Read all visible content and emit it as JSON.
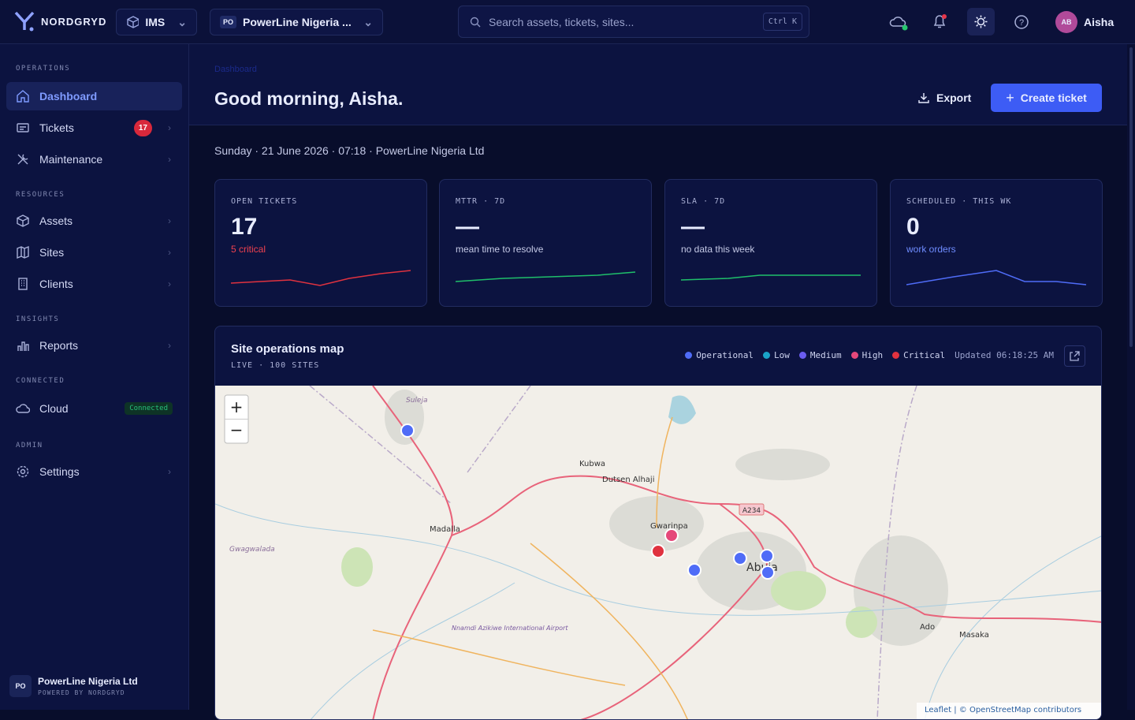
{
  "topbar": {
    "brand": "NORDGRYD",
    "module": "IMS",
    "org_badge": "PO",
    "org": "PowerLine Nigeria ...",
    "search_placeholder": "Search assets, tickets, sites...",
    "shortcut": "Ctrl K",
    "avatar": "AB",
    "user": "Aisha"
  },
  "sidebar": {
    "sections": [
      {
        "title": "OPERATIONS",
        "items": [
          {
            "label": "Dashboard"
          },
          {
            "label": "Tickets",
            "badge": "17"
          },
          {
            "label": "Maintenance"
          }
        ]
      },
      {
        "title": "RESOURCES",
        "items": [
          {
            "label": "Assets"
          },
          {
            "label": "Sites"
          },
          {
            "label": "Clients"
          }
        ]
      },
      {
        "title": "INSIGHTS",
        "items": [
          {
            "label": "Reports"
          }
        ]
      },
      {
        "title": "CONNECTED",
        "items": [
          {
            "label": "Cloud",
            "status": "Connected"
          }
        ]
      },
      {
        "title": "ADMIN",
        "items": [
          {
            "label": "Settings"
          }
        ]
      }
    ],
    "footer": {
      "badge": "PO",
      "org": "PowerLine Nigeria Ltd",
      "powered": "POWERED BY NORDGRYD"
    }
  },
  "header": {
    "breadcrumb": "Dashboard",
    "greeting": "Good morning, Aisha.",
    "export": "Export",
    "create": "Create ticket",
    "date_line": "Sunday · 21 June 2026 · 07:18 · PowerLine Nigeria Ltd"
  },
  "kpis": [
    {
      "label": "OPEN TICKETS",
      "value": "17",
      "sub": "5 critical"
    },
    {
      "label": "MTTR · 7D",
      "value": "—",
      "sub": "mean time to resolve"
    },
    {
      "label": "SLA · 7D",
      "value": "—",
      "sub": "no data this week"
    },
    {
      "label": "SCHEDULED · THIS WK",
      "value": "0",
      "sub": "work orders"
    }
  ],
  "map": {
    "title": "Site operations map",
    "subtitle": "LIVE · 100 SITES",
    "legend": [
      {
        "name": "Operational",
        "color": "#4f6cf7"
      },
      {
        "name": "Low",
        "color": "#1aa3c8"
      },
      {
        "name": "Medium",
        "color": "#6a5cf0"
      },
      {
        "name": "High",
        "color": "#e5487a"
      },
      {
        "name": "Critical",
        "color": "#e0323f"
      }
    ],
    "updated": "Updated 06:18:25 AM",
    "places": [
      "Suleja",
      "Kubwa",
      "Dutsen Alhaji",
      "Madalla",
      "Gwarinpa",
      "Abuja",
      "Gwagwalada",
      "Ado",
      "Masaka",
      "A234",
      "Nnamdi Azikiwe International Airport"
    ],
    "attribution": "Leaflet | © OpenStreetMap contributors"
  }
}
